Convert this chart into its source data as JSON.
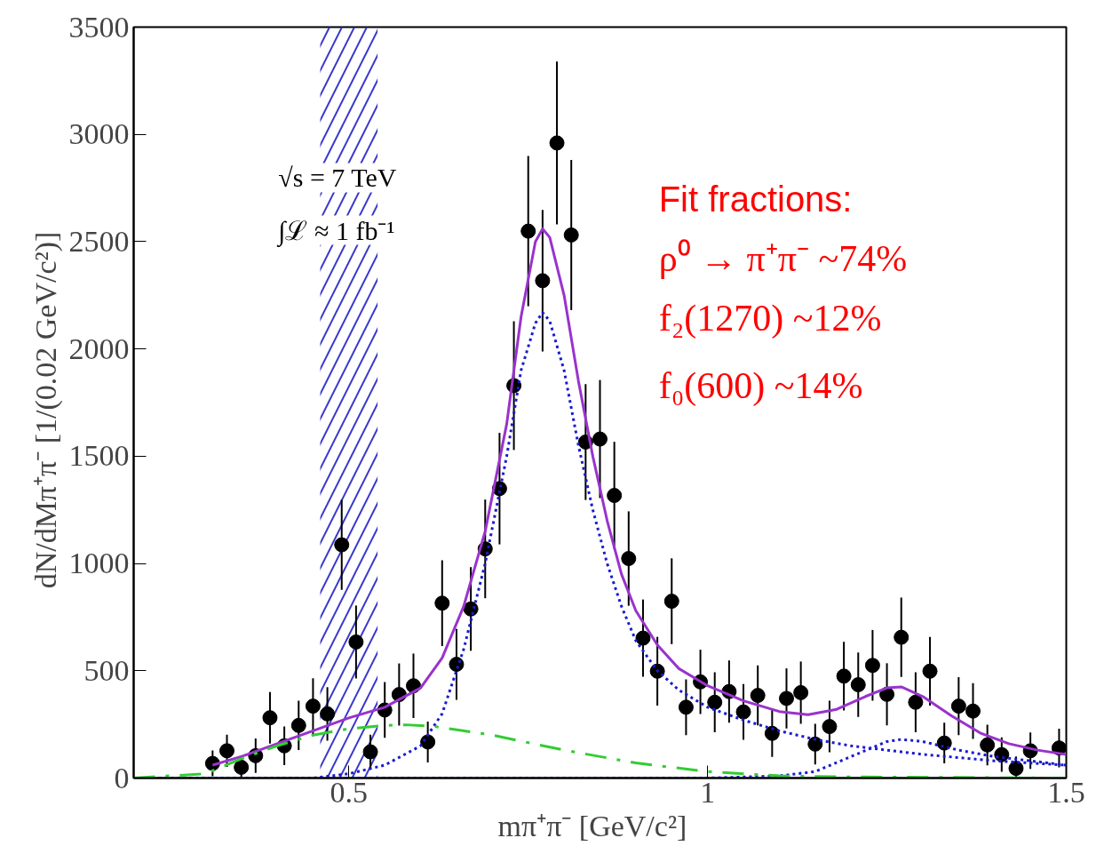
{
  "chart_data": {
    "type": "scatter",
    "xlabel": "mπ⁺π⁻   [GeV/c²]",
    "ylabel": "dN/dMπ⁺π⁻   [1/(0.02 GeV/c²)]",
    "xlim": [
      0.2,
      1.5
    ],
    "xticks": [
      0.5,
      1,
      1.5
    ],
    "ylim": [
      0,
      3500
    ],
    "yticks": [
      0,
      500,
      1000,
      1500,
      2000,
      2500,
      3000,
      3500
    ],
    "grid": false,
    "annotations": [
      "√s = 7 TeV",
      "∫ℒ ≈ 1 fb⁻¹",
      "Fit fractions:",
      "ρ⁰ → π⁺π⁻ ~74%",
      "f₂(1270)   ~12%",
      "f₀(600)     ~14%"
    ],
    "bands": [
      {
        "axis": "x",
        "from": 0.46,
        "to": 0.54,
        "color": "#3a3acc"
      }
    ],
    "series": [
      {
        "color": "#000000",
        "marker": "circle",
        "x": [
          0.31,
          0.33,
          0.35,
          0.37,
          0.39,
          0.41,
          0.43,
          0.45,
          0.47,
          0.49,
          0.51,
          0.53,
          0.55,
          0.57,
          0.59,
          0.61,
          0.63,
          0.65,
          0.67,
          0.69,
          0.71,
          0.73,
          0.75,
          0.77,
          0.79,
          0.81,
          0.83,
          0.85,
          0.87,
          0.89,
          0.91,
          0.93,
          0.95,
          0.97,
          0.99,
          1.01,
          1.03,
          1.05,
          1.07,
          1.09,
          1.11,
          1.13,
          1.15,
          1.17,
          1.19,
          1.21,
          1.23,
          1.25,
          1.27,
          1.29,
          1.31,
          1.33,
          1.35,
          1.37,
          1.39,
          1.41,
          1.43,
          1.45,
          1.49
        ],
        "values": [
          68,
          127,
          50,
          104,
          281,
          150,
          245,
          335,
          299,
          1087,
          634,
          122,
          317,
          389,
          430,
          168,
          815,
          530,
          788,
          1068,
          1349,
          1829,
          2549,
          2318,
          2960,
          2531,
          1566,
          1580,
          1317,
          1023,
          652,
          498,
          824,
          330,
          448,
          353,
          403,
          308,
          385,
          208,
          371,
          398,
          158,
          240,
          475,
          435,
          525,
          390,
          656,
          353,
          498,
          163,
          335,
          312,
          154,
          109,
          45,
          127,
          140
        ],
        "errors": [
          60,
          75,
          55,
          80,
          120,
          90,
          115,
          130,
          125,
          210,
          170,
          80,
          130,
          145,
          150,
          95,
          200,
          165,
          195,
          230,
          260,
          300,
          350,
          330,
          380,
          350,
          270,
          275,
          250,
          220,
          180,
          160,
          200,
          130,
          150,
          140,
          145,
          130,
          140,
          110,
          140,
          145,
          95,
          120,
          160,
          150,
          165,
          145,
          185,
          140,
          160,
          95,
          135,
          130,
          95,
          80,
          55,
          85,
          90
        ]
      },
      {
        "type": "line",
        "color": "#9933cc",
        "line_style": "solid",
        "marker": "none",
        "x": [
          0.31,
          0.35,
          0.4,
          0.45,
          0.5,
          0.55,
          0.6,
          0.63,
          0.66,
          0.69,
          0.72,
          0.74,
          0.76,
          0.77,
          0.78,
          0.8,
          0.82,
          0.84,
          0.86,
          0.88,
          0.9,
          0.93,
          0.96,
          1.0,
          1.05,
          1.1,
          1.14,
          1.18,
          1.22,
          1.25,
          1.27,
          1.3,
          1.34,
          1.38,
          1.42,
          1.46,
          1.5
        ],
        "values": [
          60,
          100,
          160,
          220,
          280,
          330,
          420,
          560,
          800,
          1150,
          1650,
          2150,
          2500,
          2560,
          2520,
          2250,
          1850,
          1500,
          1200,
          950,
          780,
          620,
          510,
          430,
          360,
          310,
          295,
          320,
          380,
          420,
          425,
          380,
          290,
          210,
          160,
          130,
          110
        ]
      },
      {
        "type": "line",
        "color": "#1a1ad0",
        "line_style": "dotted",
        "marker": "none",
        "x": [
          0.2,
          0.45,
          0.5,
          0.55,
          0.6,
          0.63,
          0.66,
          0.69,
          0.72,
          0.74,
          0.76,
          0.77,
          0.78,
          0.8,
          0.82,
          0.84,
          0.86,
          0.88,
          0.9,
          0.93,
          0.96,
          1.0,
          1.05,
          1.1,
          1.15,
          1.2,
          1.3,
          1.4,
          1.5
        ],
        "values": [
          0,
          0,
          20,
          60,
          150,
          300,
          600,
          1000,
          1500,
          1900,
          2120,
          2170,
          2130,
          1900,
          1550,
          1250,
          1000,
          800,
          640,
          500,
          410,
          330,
          270,
          220,
          180,
          150,
          110,
          80,
          60
        ]
      },
      {
        "type": "line",
        "color": "#1a1ad0",
        "line_style": "dotted",
        "marker": "none",
        "x": [
          0.2,
          1.0,
          1.1,
          1.15,
          1.2,
          1.25,
          1.27,
          1.3,
          1.35,
          1.4,
          1.45,
          1.5
        ],
        "values": [
          0,
          0,
          10,
          30,
          100,
          170,
          180,
          170,
          130,
          100,
          80,
          60
        ]
      },
      {
        "type": "line",
        "color": "#33cc33",
        "line_style": "dashed",
        "marker": "none",
        "x": [
          0.2,
          0.3,
          0.35,
          0.4,
          0.45,
          0.5,
          0.55,
          0.58,
          0.62,
          0.7,
          0.8,
          0.9,
          1.0,
          1.1,
          1.2,
          1.5
        ],
        "values": [
          0,
          20,
          90,
          150,
          200,
          230,
          245,
          248,
          240,
          200,
          130,
          70,
          30,
          10,
          5,
          0
        ]
      }
    ]
  }
}
